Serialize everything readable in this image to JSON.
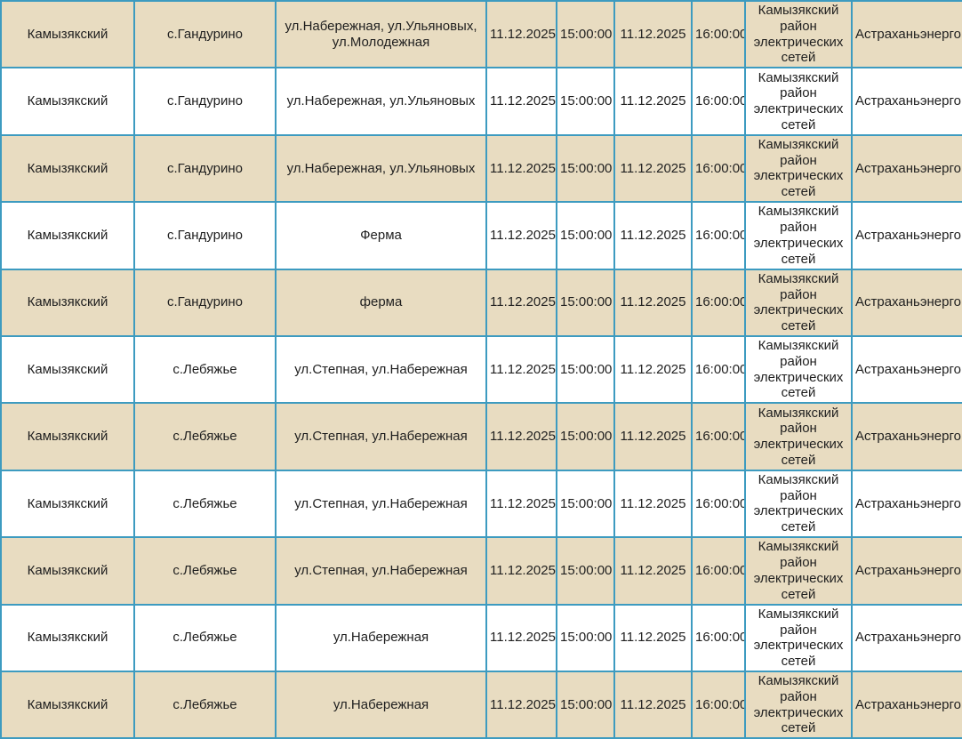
{
  "colors": {
    "border": "#3d9bc0",
    "row_alt_background": "#e8dcc1",
    "row_plain_background": "#ffffff",
    "text": "#1f1f1f"
  },
  "table": {
    "columns": [
      "district",
      "settlement",
      "streets",
      "start_date",
      "start_time",
      "end_date",
      "end_time",
      "network_branch",
      "company"
    ],
    "rows": [
      {
        "district": "Камызякский",
        "settlement": "с.Гандурино",
        "streets": "ул.Набережная, ул.Ульяновых, ул.Молодежная",
        "start_date": "11.12.2025",
        "start_time": "15:00:00",
        "end_date": "11.12.2025",
        "end_time": "16:00:00",
        "network_branch": "Камызякский район электрических сетей",
        "company": "Астраханьэнерго"
      },
      {
        "district": "Камызякский",
        "settlement": "с.Гандурино",
        "streets": "ул.Набережная, ул.Ульяновых",
        "start_date": "11.12.2025",
        "start_time": "15:00:00",
        "end_date": "11.12.2025",
        "end_time": "16:00:00",
        "network_branch": "Камызякский район электрических сетей",
        "company": "Астраханьэнерго"
      },
      {
        "district": "Камызякский",
        "settlement": "с.Гандурино",
        "streets": "ул.Набережная, ул.Ульяновых",
        "start_date": "11.12.2025",
        "start_time": "15:00:00",
        "end_date": "11.12.2025",
        "end_time": "16:00:00",
        "network_branch": "Камызякский район электрических сетей",
        "company": "Астраханьэнерго"
      },
      {
        "district": "Камызякский",
        "settlement": "с.Гандурино",
        "streets": "Ферма",
        "start_date": "11.12.2025",
        "start_time": "15:00:00",
        "end_date": "11.12.2025",
        "end_time": "16:00:00",
        "network_branch": "Камызякский район электрических сетей",
        "company": "Астраханьэнерго"
      },
      {
        "district": "Камызякский",
        "settlement": "с.Гандурино",
        "streets": "ферма",
        "start_date": "11.12.2025",
        "start_time": "15:00:00",
        "end_date": "11.12.2025",
        "end_time": "16:00:00",
        "network_branch": "Камызякский район электрических сетей",
        "company": "Астраханьэнерго"
      },
      {
        "district": "Камызякский",
        "settlement": "с.Лебяжье",
        "streets": "ул.Степная, ул.Набережная",
        "start_date": "11.12.2025",
        "start_time": "15:00:00",
        "end_date": "11.12.2025",
        "end_time": "16:00:00",
        "network_branch": "Камызякский район электрических сетей",
        "company": "Астраханьэнерго"
      },
      {
        "district": "Камызякский",
        "settlement": "с.Лебяжье",
        "streets": "ул.Степная, ул.Набережная",
        "start_date": "11.12.2025",
        "start_time": "15:00:00",
        "end_date": "11.12.2025",
        "end_time": "16:00:00",
        "network_branch": "Камызякский район электрических сетей",
        "company": "Астраханьэнерго"
      },
      {
        "district": "Камызякский",
        "settlement": "с.Лебяжье",
        "streets": "ул.Степная, ул.Набережная",
        "start_date": "11.12.2025",
        "start_time": "15:00:00",
        "end_date": "11.12.2025",
        "end_time": "16:00:00",
        "network_branch": "Камызякский район электрических сетей",
        "company": "Астраханьэнерго"
      },
      {
        "district": "Камызякский",
        "settlement": "с.Лебяжье",
        "streets": "ул.Степная, ул.Набережная",
        "start_date": "11.12.2025",
        "start_time": "15:00:00",
        "end_date": "11.12.2025",
        "end_time": "16:00:00",
        "network_branch": "Камызякский район электрических сетей",
        "company": "Астраханьэнерго"
      },
      {
        "district": "Камызякский",
        "settlement": "с.Лебяжье",
        "streets": "ул.Набережная",
        "start_date": "11.12.2025",
        "start_time": "15:00:00",
        "end_date": "11.12.2025",
        "end_time": "16:00:00",
        "network_branch": "Камызякский район электрических сетей",
        "company": "Астраханьэнерго"
      },
      {
        "district": "Камызякский",
        "settlement": "с.Лебяжье",
        "streets": "ул.Набережная",
        "start_date": "11.12.2025",
        "start_time": "15:00:00",
        "end_date": "11.12.2025",
        "end_time": "16:00:00",
        "network_branch": "Камызякский район электрических сетей",
        "company": "Астраханьэнерго"
      }
    ]
  }
}
